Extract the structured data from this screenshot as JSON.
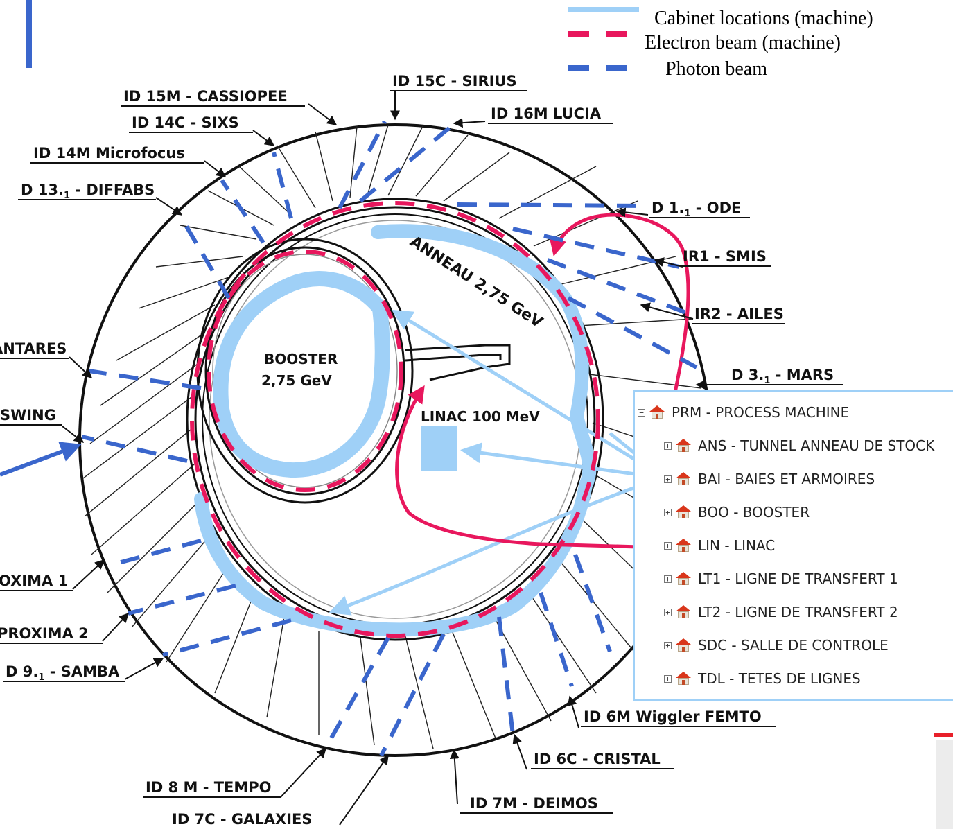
{
  "legend": {
    "items": [
      {
        "label": "Cabinet locations (machine)",
        "color": "#9fd0f7",
        "style": "solid"
      },
      {
        "label": "Electron beam (machine)",
        "color": "#e8175d",
        "style": "dashed"
      },
      {
        "label": "Photon beam",
        "color": "#3a66cc",
        "style": "dashed"
      }
    ]
  },
  "beamlines": [
    "ID 15C - SIRIUS",
    "ID 15M - CASSIOPEE",
    "ID 16M LUCIA",
    "ID 14C - SIXS",
    "ID 14M Microfocus",
    "D 13.",
    "1",
    " - DIFFABS",
    "D 1.",
    "1",
    " - ODE",
    "IR1 - SMIS",
    "IR2 - AILES",
    "D 3.",
    "1",
    " - MARS",
    "ANTARES",
    "SWING",
    "OXIMA 1",
    "PROXIMA 2",
    "D 9.",
    "1",
    " - SAMBA",
    "ID 6M Wiggler FEMTO",
    "ID 6C - CRISTAL",
    "ID 8 M - TEMPO",
    "ID 7M - DEIMOS",
    "ID 7C - GALAXIES"
  ],
  "center": {
    "booster_line1": "BOOSTER",
    "booster_line2": "2,75 GeV",
    "linac": "LINAC 100 MeV",
    "anneau": "ANNEAU 2,75 GeV"
  },
  "tree": {
    "root": {
      "label": "PRM - PROCESS MACHINE",
      "expander": "−"
    },
    "children": [
      {
        "label": "ANS - TUNNEL ANNEAU DE STOCK",
        "expander": "+"
      },
      {
        "label": "BAI - BAIES ET ARMOIRES",
        "expander": "+"
      },
      {
        "label": "BOO - BOOSTER",
        "expander": "+"
      },
      {
        "label": "LIN - LINAC",
        "expander": "+"
      },
      {
        "label": "LT1 - LIGNE DE TRANSFERT 1",
        "expander": "+"
      },
      {
        "label": "LT2 - LIGNE DE TRANSFERT 2",
        "expander": "+"
      },
      {
        "label": "SDC - SALLE DE CONTROLE",
        "expander": "+"
      },
      {
        "label": "TDL - TETES DE LIGNES",
        "expander": "+"
      }
    ]
  },
  "colors": {
    "cabinet": "#9fd0f7",
    "electron": "#e8175d",
    "photon": "#3a66cc",
    "ink": "#111111"
  }
}
